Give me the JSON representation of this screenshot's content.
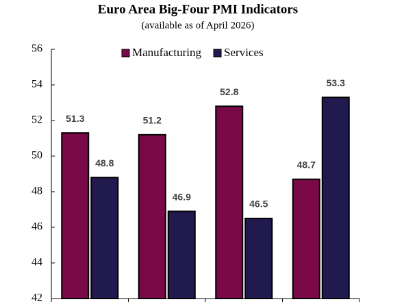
{
  "chart_data": {
    "type": "bar",
    "title": "Euro Area Big-Four PMI Indicators",
    "subtitle": "(available as of April 2026)",
    "categories": [
      null,
      null,
      null,
      null
    ],
    "series": [
      {
        "name": "Manufacturing",
        "color": "#7a0a47",
        "values": [
          51.3,
          51.2,
          52.8,
          48.7
        ]
      },
      {
        "name": "Services",
        "color": "#211a4f",
        "values": [
          48.8,
          46.9,
          46.5,
          53.3
        ]
      }
    ],
    "ylim": [
      42,
      56
    ],
    "yticks": [
      42,
      44,
      46,
      48,
      50,
      52,
      54,
      56
    ],
    "legend": "top"
  }
}
